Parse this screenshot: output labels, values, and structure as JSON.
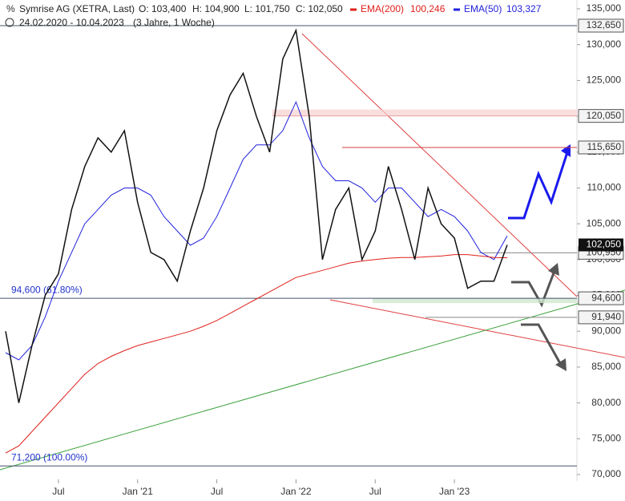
{
  "chart_data": {
    "type": "line",
    "title": "Symrise AG (XETRA, Last)",
    "ohlc": {
      "open": "O: 103,400",
      "high": "H: 104,900",
      "low": "L: 101,750",
      "close": "C: 102,050"
    },
    "period": "24.02.2020 - 10.04.2023",
    "period_note": "(3 Jahre, 1 Woche)",
    "last_label": "102,050",
    "x": [
      "2020-02",
      "2020-03",
      "2020-04",
      "2020-05",
      "2020-06",
      "2020-07",
      "2020-08",
      "2020-09",
      "2020-10",
      "2020-11",
      "2020-12",
      "2021-01",
      "2021-02",
      "2021-03",
      "2021-04",
      "2021-05",
      "2021-06",
      "2021-07",
      "2021-08",
      "2021-09",
      "2021-10",
      "2021-11",
      "2021-12",
      "2022-01",
      "2022-02",
      "2022-03",
      "2022-04",
      "2022-05",
      "2022-06",
      "2022-07",
      "2022-08",
      "2022-09",
      "2022-10",
      "2022-11",
      "2022-12",
      "2023-01",
      "2023-02",
      "2023-03",
      "2023-04"
    ],
    "series": [
      {
        "name": "Symrise AG",
        "color": "#111111",
        "values": [
          90000,
          80000,
          88000,
          95000,
          98000,
          107000,
          113000,
          117000,
          115000,
          118000,
          108000,
          101000,
          100000,
          97000,
          104000,
          110000,
          118000,
          123000,
          126000,
          120000,
          115000,
          128000,
          132000,
          120000,
          100000,
          107000,
          110000,
          100000,
          104000,
          113000,
          107000,
          100000,
          110000,
          105000,
          103000,
          96000,
          97000,
          97000,
          102050
        ]
      },
      {
        "name": "EMA(200)",
        "value_label": "100,246",
        "color": "#e0201b",
        "values": [
          73000,
          74000,
          76000,
          78000,
          80000,
          82000,
          84000,
          85500,
          86500,
          87300,
          88000,
          88500,
          89000,
          89500,
          90000,
          90700,
          91500,
          92500,
          93500,
          94500,
          95500,
          96500,
          97500,
          98000,
          98500,
          99000,
          99500,
          99800,
          100000,
          100200,
          100300,
          100300,
          100400,
          100500,
          100700,
          100700,
          100500,
          100300,
          100246
        ]
      },
      {
        "name": "EMA(50)",
        "value_label": "103,327",
        "color": "#2222dd",
        "values": [
          87000,
          86000,
          88000,
          92000,
          97000,
          101000,
          105000,
          107000,
          109000,
          110000,
          110000,
          109000,
          106000,
          104000,
          102000,
          103000,
          106000,
          110000,
          114000,
          116000,
          116000,
          118000,
          122000,
          117000,
          113000,
          111000,
          111000,
          110000,
          108000,
          110000,
          110000,
          108000,
          106000,
          107000,
          106000,
          104000,
          101000,
          100000,
          103327
        ]
      }
    ],
    "ylim": [
      70000,
      135000
    ],
    "yticks": [
      {
        "value": 70000,
        "label": "70,000"
      },
      {
        "value": 75000,
        "label": "75,000"
      },
      {
        "value": 80000,
        "label": "80,000"
      },
      {
        "value": 85000,
        "label": "85,000"
      },
      {
        "value": 90000,
        "label": "90,000"
      },
      {
        "value": 95000,
        "label": "95,000"
      },
      {
        "value": 100000,
        "label": "100,000"
      },
      {
        "value": 105000,
        "label": "105,000"
      },
      {
        "value": 110000,
        "label": "110,000"
      },
      {
        "value": 115000,
        "label": "115,000"
      },
      {
        "value": 120000,
        "label": "120,000"
      },
      {
        "value": 125000,
        "label": "125,000"
      },
      {
        "value": 130000,
        "label": "130,000"
      },
      {
        "value": 135000,
        "label": "135,000"
      }
    ],
    "xlim": [
      "2020-02",
      "2023-04"
    ],
    "xticks": [
      {
        "value": "2020-07",
        "label": "Jul"
      },
      {
        "value": "2021-01",
        "label": "Jan '21"
      },
      {
        "value": "2021-07",
        "label": "Jul"
      },
      {
        "value": "2022-01",
        "label": "Jan '22"
      },
      {
        "value": "2022-07",
        "label": "Jul"
      },
      {
        "value": "2023-01",
        "label": "Jan '23"
      }
    ],
    "levels": [
      {
        "value": 132650,
        "label": "132,650",
        "color": "#44546a"
      },
      {
        "value": 120050,
        "label": "120,050",
        "color": "#e8a0a0"
      },
      {
        "value": 115650,
        "label": "115,650",
        "color": "#d04040"
      },
      {
        "value": 100950,
        "label": "100,950",
        "color": "#888888"
      },
      {
        "value": 94600,
        "label": "94,600",
        "color": "#44546a"
      },
      {
        "value": 91940,
        "label": "91,940",
        "color": "#888888"
      }
    ],
    "fib": [
      {
        "value": 94600,
        "label": "94,600 (61.80%)"
      },
      {
        "value": 71200,
        "label": "71,200 (100.00%)"
      }
    ]
  }
}
